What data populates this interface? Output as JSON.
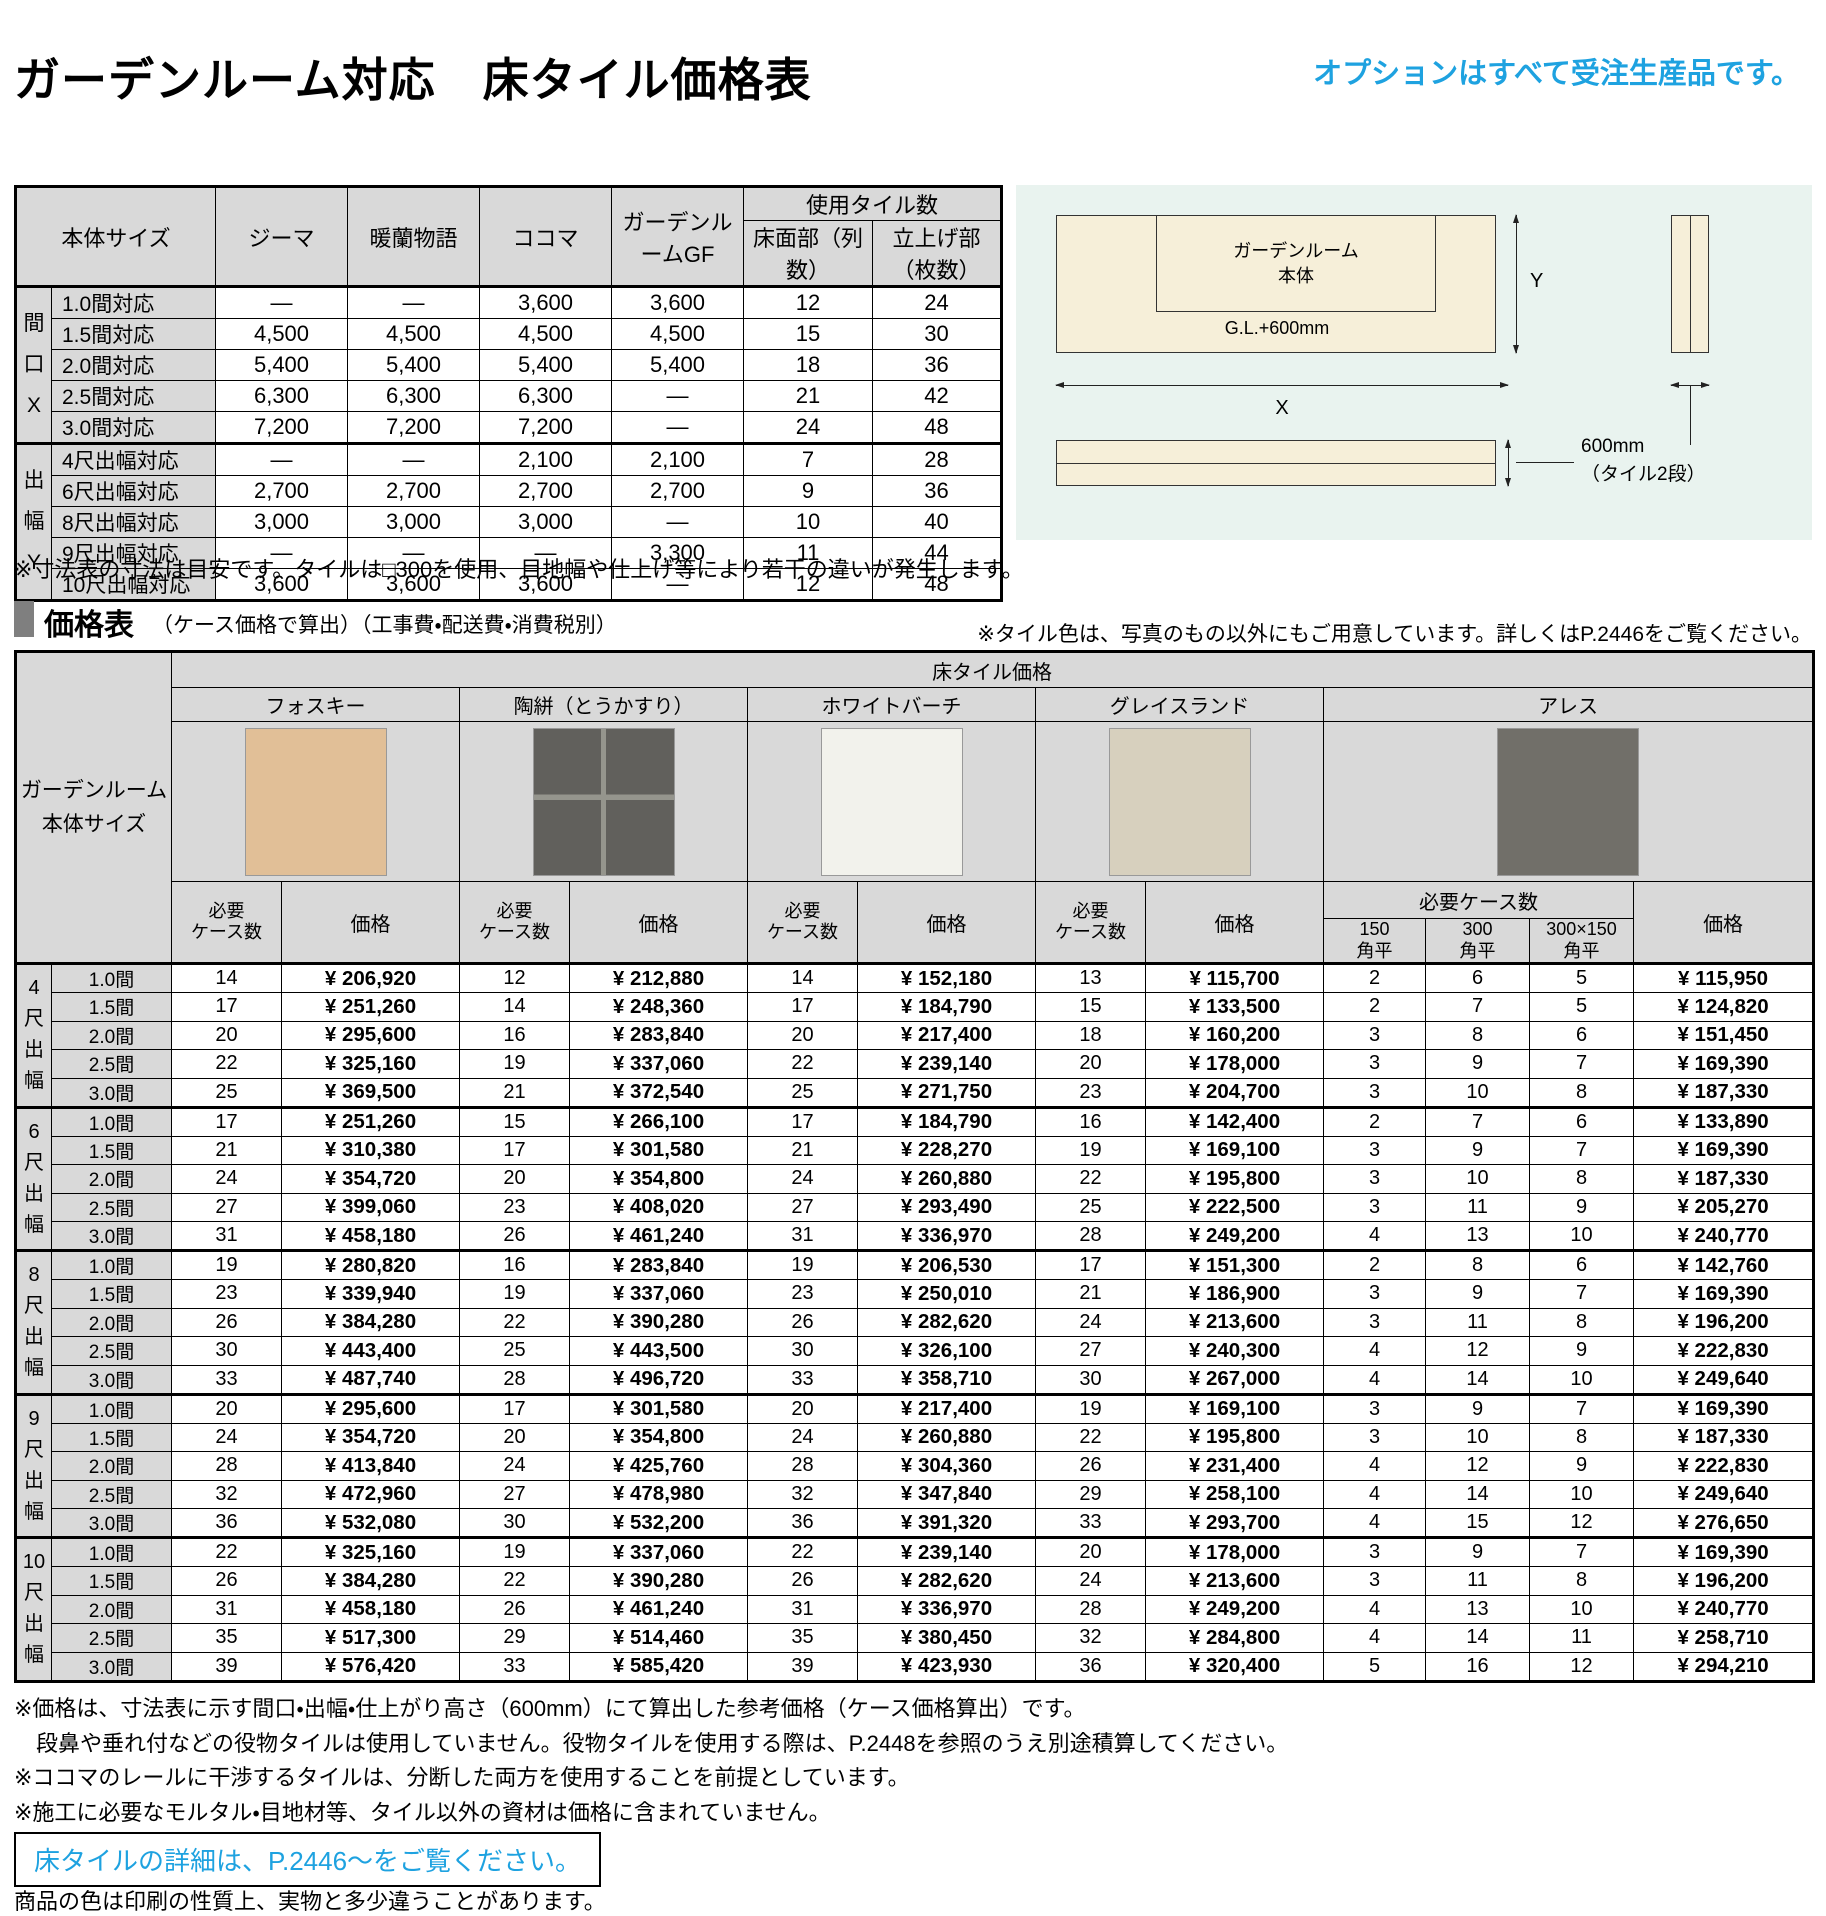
{
  "page": {
    "title": "ガーデンルーム対応　床タイル価格表",
    "option_note": "オプションはすべて受注生産品です。",
    "detail_box_note": "床タイルの詳細は、P.2446〜をご覧ください。",
    "bottom_note": "商品の色は印刷の性質上、実物と多少違うことがあります。",
    "accent_blue": "#1ea2e0"
  },
  "size_table": {
    "col_headers": [
      "本体サイズ",
      "ジーマ",
      "暖蘭物語",
      "ココマ",
      "ガーデンルームGF"
    ],
    "tile_count_header": "使用タイル数",
    "tile_count_sub_headers": [
      "床面部（列数）",
      "立上げ部（枚数）"
    ],
    "groups": [
      {
        "label_parts": [
          "間",
          "口",
          "X"
        ],
        "rows": [
          {
            "label": "1.0間対応",
            "values": [
              "—",
              "—",
              "3,600",
              "3,600",
              "12",
              "24"
            ]
          },
          {
            "label": "1.5間対応",
            "values": [
              "4,500",
              "4,500",
              "4,500",
              "4,500",
              "15",
              "30"
            ]
          },
          {
            "label": "2.0間対応",
            "values": [
              "5,400",
              "5,400",
              "5,400",
              "5,400",
              "18",
              "36"
            ]
          },
          {
            "label": "2.5間対応",
            "values": [
              "6,300",
              "6,300",
              "6,300",
              "—",
              "21",
              "42"
            ]
          },
          {
            "label": "3.0間対応",
            "values": [
              "7,200",
              "7,200",
              "7,200",
              "—",
              "24",
              "48"
            ]
          }
        ]
      },
      {
        "label_parts": [
          "出",
          "幅",
          "Y"
        ],
        "rows": [
          {
            "label": "4尺出幅対応",
            "values": [
              "—",
              "—",
              "2,100",
              "2,100",
              "7",
              "28"
            ]
          },
          {
            "label": "6尺出幅対応",
            "values": [
              "2,700",
              "2,700",
              "2,700",
              "2,700",
              "9",
              "36"
            ]
          },
          {
            "label": "8尺出幅対応",
            "values": [
              "3,000",
              "3,000",
              "3,000",
              "—",
              "10",
              "40"
            ]
          },
          {
            "label": "9尺出幅対応",
            "values": [
              "—",
              "—",
              "—",
              "3,300",
              "11",
              "44"
            ]
          },
          {
            "label": "10尺出幅対応",
            "values": [
              "3,600",
              "3,600",
              "3,600",
              "—",
              "12",
              "48"
            ]
          }
        ]
      }
    ],
    "note": "※寸法表の寸法は目安です。タイルは□300を使用、目地幅や仕上げ等により若干の違いが発生します。"
  },
  "diagram": {
    "body_label": "ガーデンルーム\n本体",
    "gl_label": "G.L.+600mm",
    "x_label": "X",
    "y_label": "Y",
    "tile_height_label": "600mm\n（タイル2段）"
  },
  "price_section": {
    "heading": "価格表",
    "heading_note": "（ケース価格で算出）（工事費・配送費・消費税別）",
    "color_note": "※タイル色は、写真のもの以外にもご用意しています。詳しくはP.2446をご覧ください。"
  },
  "price_table": {
    "corner_label": "ガーデンルーム\n本体サイズ",
    "top_header": "床タイル価格",
    "case_count_header": "必要\nケース数",
    "price_header": "価格",
    "ares_case_count_header": "必要ケース数",
    "ares_case_sub_headers": [
      "150\n角平",
      "300\n角平",
      "300×150\n角平"
    ],
    "tiles": [
      {
        "name": "フォスキー",
        "color": "#e1bf97"
      },
      {
        "name": "陶絣（とうかすり）",
        "color": "#61605c",
        "grout": true
      },
      {
        "name": "ホワイトバーチ",
        "color": "#f2f2ec"
      },
      {
        "name": "グレイスランド",
        "color": "#d7d0be"
      },
      {
        "name": "アレス",
        "color": "#716f69"
      }
    ],
    "groups": [
      {
        "label_parts": [
          "4",
          "尺",
          "出",
          "幅"
        ],
        "rows": [
          {
            "label": "1.0間",
            "values": [
              "14",
              "¥ 206,920",
              "12",
              "¥ 212,880",
              "14",
              "¥ 152,180",
              "13",
              "¥ 115,700",
              "2",
              "6",
              "5",
              "¥ 115,950"
            ]
          },
          {
            "label": "1.5間",
            "values": [
              "17",
              "¥ 251,260",
              "14",
              "¥ 248,360",
              "17",
              "¥ 184,790",
              "15",
              "¥ 133,500",
              "2",
              "7",
              "5",
              "¥ 124,820"
            ]
          },
          {
            "label": "2.0間",
            "values": [
              "20",
              "¥ 295,600",
              "16",
              "¥ 283,840",
              "20",
              "¥ 217,400",
              "18",
              "¥ 160,200",
              "3",
              "8",
              "6",
              "¥ 151,450"
            ]
          },
          {
            "label": "2.5間",
            "values": [
              "22",
              "¥ 325,160",
              "19",
              "¥ 337,060",
              "22",
              "¥ 239,140",
              "20",
              "¥ 178,000",
              "3",
              "9",
              "7",
              "¥ 169,390"
            ]
          },
          {
            "label": "3.0間",
            "values": [
              "25",
              "¥ 369,500",
              "21",
              "¥ 372,540",
              "25",
              "¥ 271,750",
              "23",
              "¥ 204,700",
              "3",
              "10",
              "8",
              "¥ 187,330"
            ]
          }
        ]
      },
      {
        "label_parts": [
          "6",
          "尺",
          "出",
          "幅"
        ],
        "rows": [
          {
            "label": "1.0間",
            "values": [
              "17",
              "¥ 251,260",
              "15",
              "¥ 266,100",
              "17",
              "¥ 184,790",
              "16",
              "¥ 142,400",
              "2",
              "7",
              "6",
              "¥ 133,890"
            ]
          },
          {
            "label": "1.5間",
            "values": [
              "21",
              "¥ 310,380",
              "17",
              "¥ 301,580",
              "21",
              "¥ 228,270",
              "19",
              "¥ 169,100",
              "3",
              "9",
              "7",
              "¥ 169,390"
            ]
          },
          {
            "label": "2.0間",
            "values": [
              "24",
              "¥ 354,720",
              "20",
              "¥ 354,800",
              "24",
              "¥ 260,880",
              "22",
              "¥ 195,800",
              "3",
              "10",
              "8",
              "¥ 187,330"
            ]
          },
          {
            "label": "2.5間",
            "values": [
              "27",
              "¥ 399,060",
              "23",
              "¥ 408,020",
              "27",
              "¥ 293,490",
              "25",
              "¥ 222,500",
              "3",
              "11",
              "9",
              "¥ 205,270"
            ]
          },
          {
            "label": "3.0間",
            "values": [
              "31",
              "¥ 458,180",
              "26",
              "¥ 461,240",
              "31",
              "¥ 336,970",
              "28",
              "¥ 249,200",
              "4",
              "13",
              "10",
              "¥ 240,770"
            ]
          }
        ]
      },
      {
        "label_parts": [
          "8",
          "尺",
          "出",
          "幅"
        ],
        "rows": [
          {
            "label": "1.0間",
            "values": [
              "19",
              "¥ 280,820",
              "16",
              "¥ 283,840",
              "19",
              "¥ 206,530",
              "17",
              "¥ 151,300",
              "2",
              "8",
              "6",
              "¥ 142,760"
            ]
          },
          {
            "label": "1.5間",
            "values": [
              "23",
              "¥ 339,940",
              "19",
              "¥ 337,060",
              "23",
              "¥ 250,010",
              "21",
              "¥ 186,900",
              "3",
              "9",
              "7",
              "¥ 169,390"
            ]
          },
          {
            "label": "2.0間",
            "values": [
              "26",
              "¥ 384,280",
              "22",
              "¥ 390,280",
              "26",
              "¥ 282,620",
              "24",
              "¥ 213,600",
              "3",
              "11",
              "8",
              "¥ 196,200"
            ]
          },
          {
            "label": "2.5間",
            "values": [
              "30",
              "¥ 443,400",
              "25",
              "¥ 443,500",
              "30",
              "¥ 326,100",
              "27",
              "¥ 240,300",
              "4",
              "12",
              "9",
              "¥ 222,830"
            ]
          },
          {
            "label": "3.0間",
            "values": [
              "33",
              "¥ 487,740",
              "28",
              "¥ 496,720",
              "33",
              "¥ 358,710",
              "30",
              "¥ 267,000",
              "4",
              "14",
              "10",
              "¥ 249,640"
            ]
          }
        ]
      },
      {
        "label_parts": [
          "9",
          "尺",
          "出",
          "幅"
        ],
        "rows": [
          {
            "label": "1.0間",
            "values": [
              "20",
              "¥ 295,600",
              "17",
              "¥ 301,580",
              "20",
              "¥ 217,400",
              "19",
              "¥ 169,100",
              "3",
              "9",
              "7",
              "¥ 169,390"
            ]
          },
          {
            "label": "1.5間",
            "values": [
              "24",
              "¥ 354,720",
              "20",
              "¥ 354,800",
              "24",
              "¥ 260,880",
              "22",
              "¥ 195,800",
              "3",
              "10",
              "8",
              "¥ 187,330"
            ]
          },
          {
            "label": "2.0間",
            "values": [
              "28",
              "¥ 413,840",
              "24",
              "¥ 425,760",
              "28",
              "¥ 304,360",
              "26",
              "¥ 231,400",
              "4",
              "12",
              "9",
              "¥ 222,830"
            ]
          },
          {
            "label": "2.5間",
            "values": [
              "32",
              "¥ 472,960",
              "27",
              "¥ 478,980",
              "32",
              "¥ 347,840",
              "29",
              "¥ 258,100",
              "4",
              "14",
              "10",
              "¥ 249,640"
            ]
          },
          {
            "label": "3.0間",
            "values": [
              "36",
              "¥ 532,080",
              "30",
              "¥ 532,200",
              "36",
              "¥ 391,320",
              "33",
              "¥ 293,700",
              "4",
              "15",
              "12",
              "¥ 276,650"
            ]
          }
        ]
      },
      {
        "label_parts": [
          "10",
          "尺",
          "出",
          "幅"
        ],
        "rows": [
          {
            "label": "1.0間",
            "values": [
              "22",
              "¥ 325,160",
              "19",
              "¥ 337,060",
              "22",
              "¥ 239,140",
              "20",
              "¥ 178,000",
              "3",
              "9",
              "7",
              "¥ 169,390"
            ]
          },
          {
            "label": "1.5間",
            "values": [
              "26",
              "¥ 384,280",
              "22",
              "¥ 390,280",
              "26",
              "¥ 282,620",
              "24",
              "¥ 213,600",
              "3",
              "11",
              "8",
              "¥ 196,200"
            ]
          },
          {
            "label": "2.0間",
            "values": [
              "31",
              "¥ 458,180",
              "26",
              "¥ 461,240",
              "31",
              "¥ 336,970",
              "28",
              "¥ 249,200",
              "4",
              "13",
              "10",
              "¥ 240,770"
            ]
          },
          {
            "label": "2.5間",
            "values": [
              "35",
              "¥ 517,300",
              "29",
              "¥ 514,460",
              "35",
              "¥ 380,450",
              "32",
              "¥ 284,800",
              "4",
              "14",
              "11",
              "¥ 258,710"
            ]
          },
          {
            "label": "3.0間",
            "values": [
              "39",
              "¥ 576,420",
              "33",
              "¥ 585,420",
              "39",
              "¥ 423,930",
              "36",
              "¥ 320,400",
              "5",
              "16",
              "12",
              "¥ 294,210"
            ]
          }
        ]
      }
    ]
  },
  "footnotes": [
    "※価格は、寸法表に示す間口・出幅・仕上がり高さ（600mm）にて算出した参考価格（ケース価格算出）です。",
    "　段鼻や垂れ付などの役物タイルは使用していません。役物タイルを使用する際は、P.2448を参照のうえ別途積算してください。",
    "※ココマのレールに干渉するタイルは、分断した両方を使用することを前提としています。",
    "※施工に必要なモルタル・目地材等、タイル以外の資材は価格に含まれていません。"
  ]
}
